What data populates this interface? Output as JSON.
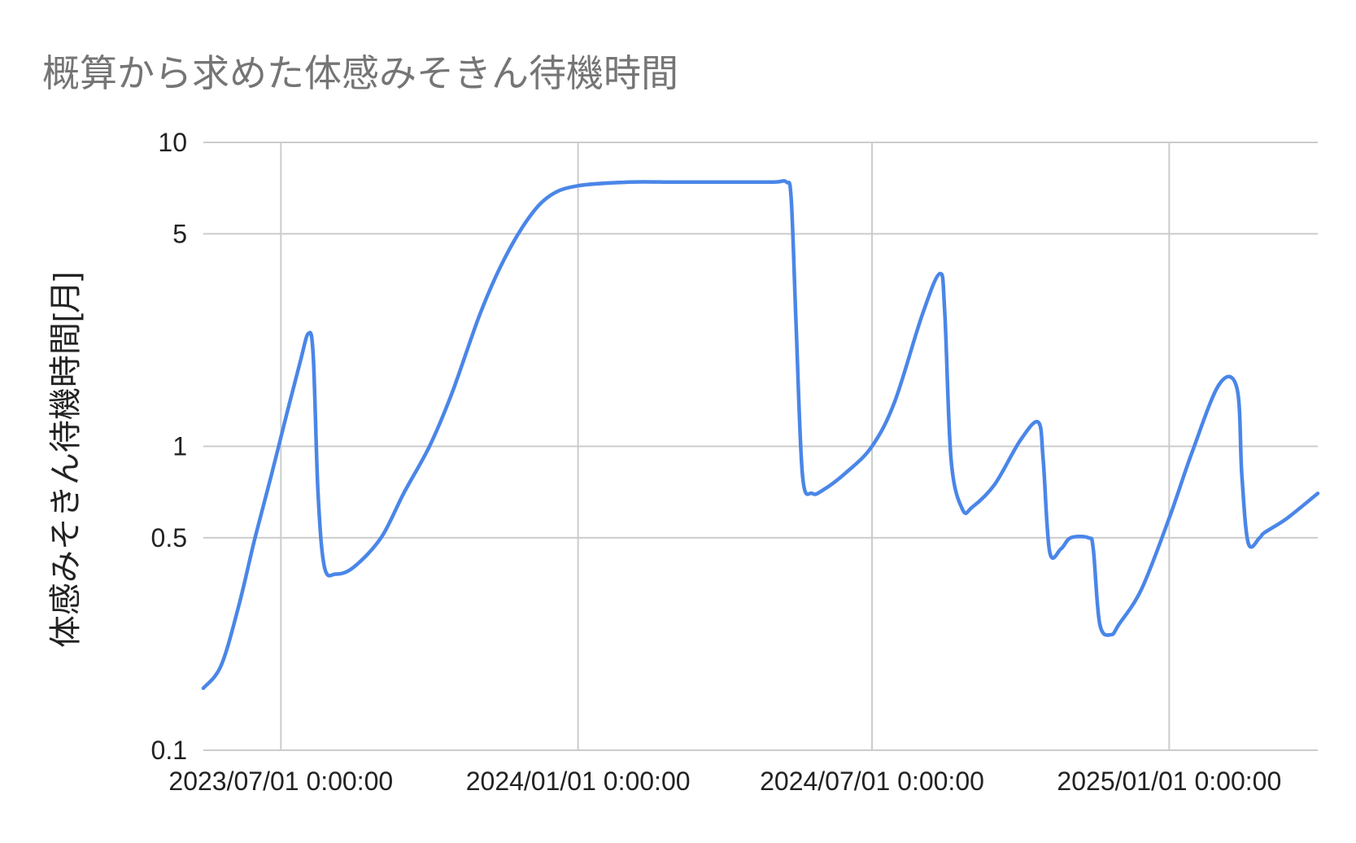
{
  "chart_data": {
    "type": "line",
    "title": "概算から求めた体感みそきん待機時間",
    "xlabel": "",
    "ylabel": "体感みそきん待機時間[月]",
    "yscale": "log",
    "ylim": [
      0.1,
      10
    ],
    "xlim": [
      "2023-05-14",
      "2025-04-03"
    ],
    "y_ticks": [
      10,
      5,
      1,
      0.5,
      0.1
    ],
    "y_tick_labels": [
      "10",
      "5",
      "1",
      "0.5",
      "0.1"
    ],
    "x_ticks": [
      "2023-07-01",
      "2024-01-01",
      "2024-07-01",
      "2025-01-01"
    ],
    "x_tick_labels": [
      "2023/07/01 0:00:00",
      "2024/01/01 0:00:00",
      "2024/07/01 0:00:00",
      "2025/01/01 0:00:00"
    ],
    "grid": true,
    "legend": "none",
    "line_color": "#4a86e8",
    "series": [
      {
        "x": [
          "2023-05-14",
          "2023-05-25",
          "2023-06-05",
          "2023-06-15",
          "2023-06-25",
          "2023-07-05",
          "2023-07-13",
          "2023-07-18",
          "2023-07-21",
          "2023-07-24",
          "2023-07-28",
          "2023-08-04",
          "2023-08-15",
          "2023-09-01",
          "2023-09-15",
          "2023-10-01",
          "2023-10-15",
          "2023-11-01",
          "2023-11-15",
          "2023-12-01",
          "2023-12-15",
          "2024-01-01",
          "2024-02-01",
          "2024-03-01",
          "2024-04-01",
          "2024-05-01",
          "2024-05-09",
          "2024-05-12",
          "2024-05-15",
          "2024-05-19",
          "2024-05-25",
          "2024-06-01",
          "2024-06-15",
          "2024-07-01",
          "2024-07-15",
          "2024-08-01",
          "2024-08-12",
          "2024-08-15",
          "2024-08-19",
          "2024-08-26",
          "2024-09-01",
          "2024-09-15",
          "2024-10-01",
          "2024-10-12",
          "2024-10-15",
          "2024-10-19",
          "2024-10-26",
          "2024-11-01",
          "2024-11-12",
          "2024-11-15",
          "2024-11-19",
          "2024-11-26",
          "2024-12-01",
          "2024-12-15",
          "2025-01-01",
          "2025-01-15",
          "2025-02-01",
          "2025-02-12",
          "2025-02-15",
          "2025-02-19",
          "2025-02-26",
          "2025-03-01",
          "2025-03-15",
          "2025-04-03"
        ],
        "y": [
          0.16,
          0.19,
          0.3,
          0.5,
          0.8,
          1.3,
          1.9,
          2.35,
          2.0,
          0.7,
          0.4,
          0.38,
          0.4,
          0.5,
          0.7,
          1.0,
          1.5,
          2.7,
          4.0,
          5.6,
          6.7,
          7.2,
          7.4,
          7.4,
          7.4,
          7.4,
          7.4,
          6.5,
          2.5,
          0.8,
          0.7,
          0.72,
          0.82,
          1.0,
          1.4,
          2.7,
          3.7,
          2.8,
          0.9,
          0.62,
          0.63,
          0.75,
          1.05,
          1.2,
          0.9,
          0.45,
          0.46,
          0.5,
          0.5,
          0.46,
          0.26,
          0.24,
          0.26,
          0.34,
          0.58,
          0.95,
          1.6,
          1.55,
          0.8,
          0.48,
          0.5,
          0.52,
          0.58,
          0.7
        ]
      }
    ]
  }
}
